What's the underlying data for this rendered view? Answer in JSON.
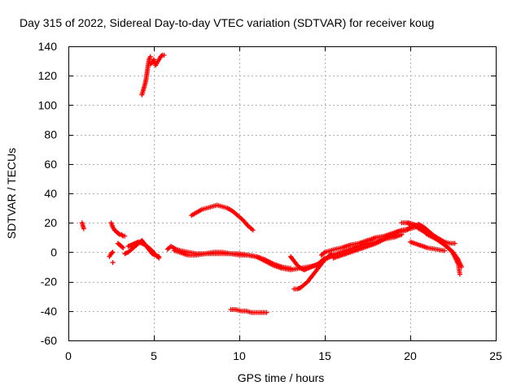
{
  "chart_data": {
    "type": "scatter",
    "title": "Day 315 of 2022, Sidereal Day-to-day VTEC variation (SDTVAR) for receiver koug",
    "xlabel": "GPS time / hours",
    "ylabel": "SDTVAR / TECUs",
    "xlim": [
      0,
      25
    ],
    "ylim": [
      -60,
      140
    ],
    "xticks": [
      0,
      5,
      10,
      15,
      20,
      25
    ],
    "yticks": [
      -60,
      -40,
      -20,
      0,
      20,
      40,
      60,
      80,
      100,
      120,
      140
    ],
    "xtick_labels": [
      "0",
      "5",
      "10",
      "15",
      "20",
      "25"
    ],
    "ytick_labels": [
      "-60",
      "-40",
      "-20",
      "0",
      "20",
      "40",
      "60",
      "80",
      "100",
      "120",
      "140"
    ],
    "grid": true,
    "legend": "none",
    "marker": "+",
    "series": [
      {
        "name": "s1",
        "x": [
          0.8,
          0.85,
          0.9
        ],
        "y": [
          20,
          18,
          16
        ]
      },
      {
        "name": "s2",
        "x": [
          2.5,
          2.6,
          2.7,
          2.8,
          2.9,
          3.0,
          3.1,
          3.2,
          3.3
        ],
        "y": [
          20,
          17,
          15,
          14,
          13,
          12,
          12,
          11,
          11
        ]
      },
      {
        "name": "s3",
        "x": [
          2.4,
          2.5,
          2.6
        ],
        "y": [
          -3,
          -1,
          0
        ]
      },
      {
        "name": "s4",
        "x": [
          2.6
        ],
        "y": [
          -7
        ]
      },
      {
        "name": "s5",
        "x": [
          2.9,
          3.0,
          3.1,
          3.2
        ],
        "y": [
          6,
          5,
          4,
          3
        ]
      },
      {
        "name": "s6",
        "x": [
          3.3,
          3.5,
          3.7,
          3.9,
          4.1,
          4.3,
          4.5,
          4.7,
          4.9,
          5.1,
          5.3
        ],
        "y": [
          -1,
          0,
          2,
          4,
          6,
          8,
          5,
          2,
          -1,
          -2,
          -3
        ]
      },
      {
        "name": "s7",
        "x": [
          3.5,
          3.7,
          3.9,
          4.1,
          4.3,
          4.5,
          4.7,
          4.9,
          5.1,
          5.3
        ],
        "y": [
          4,
          5,
          6,
          7,
          6,
          5,
          3,
          1,
          -2,
          -4
        ]
      },
      {
        "name": "s8",
        "x": [
          4.3,
          4.35,
          4.4,
          4.45,
          4.5,
          4.55,
          4.6,
          4.65,
          4.7,
          4.75,
          4.8
        ],
        "y": [
          107,
          109,
          111,
          113,
          115,
          118,
          122,
          126,
          130,
          132,
          133
        ]
      },
      {
        "name": "s9",
        "x": [
          4.8,
          4.9,
          5.0,
          5.1,
          5.2,
          5.3,
          5.4,
          5.5,
          5.6
        ],
        "y": [
          128,
          129,
          131,
          127,
          129,
          131,
          133,
          134,
          134
        ]
      },
      {
        "name": "s10",
        "x": [
          5.8,
          6.0,
          6.3,
          6.6,
          7.0,
          7.5,
          8.0,
          8.5,
          9.0,
          9.5,
          10.0,
          10.5,
          11.0,
          11.5,
          12.0,
          12.5,
          13.0
        ],
        "y": [
          2,
          4,
          2,
          1,
          0,
          -1,
          -1,
          0,
          0,
          -1,
          -1,
          -2,
          -3,
          -5,
          -8,
          -10,
          -11
        ]
      },
      {
        "name": "s11",
        "x": [
          6.2,
          6.5,
          7.0,
          7.5,
          8.0,
          8.5,
          9.0,
          9.5,
          10.0,
          10.5,
          11.0,
          11.5,
          12.0,
          12.5,
          13.0,
          13.5,
          14.0,
          14.5
        ],
        "y": [
          1,
          0,
          -2,
          -2,
          -1,
          -1,
          -1,
          -1,
          -2,
          -2,
          -3,
          -6,
          -9,
          -11,
          -12,
          -11,
          -10,
          -9
        ]
      },
      {
        "name": "s12",
        "x": [
          7.2,
          7.5,
          7.8,
          8.1,
          8.4,
          8.7,
          9.0,
          9.3,
          9.6,
          9.9,
          10.2,
          10.5,
          10.8
        ],
        "y": [
          25,
          27,
          29,
          30,
          31,
          32,
          31,
          30,
          28,
          25,
          22,
          18,
          15
        ]
      },
      {
        "name": "s13",
        "x": [
          9.5,
          9.8,
          10.1,
          10.4,
          10.7,
          11.0,
          11.3,
          11.6
        ],
        "y": [
          -39,
          -39,
          -40,
          -40,
          -41,
          -41,
          -41,
          -41
        ]
      },
      {
        "name": "s14",
        "x": [
          13.0,
          13.2,
          13.4,
          13.6,
          13.8,
          14.0,
          14.2,
          14.4,
          14.6,
          14.8,
          15.0
        ],
        "y": [
          -3,
          -6,
          -9,
          -11,
          -12,
          -11,
          -10,
          -9,
          -8,
          -6,
          -4
        ]
      },
      {
        "name": "s15",
        "x": [
          13.2,
          13.4,
          13.6,
          13.8,
          14.0,
          14.2,
          14.4,
          14.6,
          14.8,
          15.0,
          15.2,
          15.4
        ],
        "y": [
          -25,
          -25,
          -24,
          -22,
          -20,
          -17,
          -14,
          -11,
          -8,
          -5,
          -3,
          -1
        ]
      },
      {
        "name": "s16",
        "x": [
          14.8,
          15.0,
          15.3,
          15.6,
          16.0,
          16.5,
          17.0,
          17.5,
          18.0,
          18.5,
          19.0,
          19.5,
          20.0,
          20.3
        ],
        "y": [
          -2,
          0,
          1,
          2,
          3,
          5,
          6,
          8,
          10,
          11,
          13,
          15,
          16,
          17
        ]
      },
      {
        "name": "s17",
        "x": [
          14.6,
          15.0,
          15.5,
          16.0,
          16.5,
          17.0,
          17.5,
          18.0,
          18.5,
          19.0,
          19.5
        ],
        "y": [
          -9,
          -5,
          -2,
          0,
          2,
          4,
          6,
          7,
          9,
          10,
          12
        ]
      },
      {
        "name": "s18",
        "x": [
          15.5,
          16.0,
          16.5,
          17.0,
          17.5,
          18.0,
          18.5,
          19.0,
          19.3
        ],
        "y": [
          -4,
          -2,
          0,
          2,
          4,
          6,
          9,
          12,
          14
        ]
      },
      {
        "name": "s19",
        "x": [
          19.5,
          19.8,
          20.0,
          20.3,
          20.5,
          20.8,
          21.0,
          21.5,
          22.0,
          22.5,
          22.8,
          23.0
        ],
        "y": [
          20,
          20,
          19,
          18,
          16,
          14,
          12,
          9,
          5,
          0,
          -5,
          -10
        ]
      },
      {
        "name": "s20",
        "x": [
          19.5,
          19.8,
          20.0,
          20.3,
          20.5,
          20.8,
          21.0,
          21.5,
          22.0,
          22.4,
          22.6,
          22.8,
          22.9
        ],
        "y": [
          14,
          15,
          17,
          18,
          19,
          17,
          15,
          10,
          5,
          1,
          -3,
          -8,
          -15
        ]
      },
      {
        "name": "s21",
        "x": [
          19.9,
          20.2,
          20.5,
          20.8,
          21.1,
          21.4,
          21.7,
          22.0,
          22.3,
          22.5,
          22.6
        ],
        "y": [
          20,
          19,
          17,
          15,
          13,
          11,
          9,
          7,
          6,
          6,
          6
        ]
      },
      {
        "name": "s22",
        "x": [
          20.0,
          20.5,
          21.0,
          21.5,
          22.0
        ],
        "y": [
          7,
          5,
          3,
          2,
          1
        ]
      }
    ]
  }
}
